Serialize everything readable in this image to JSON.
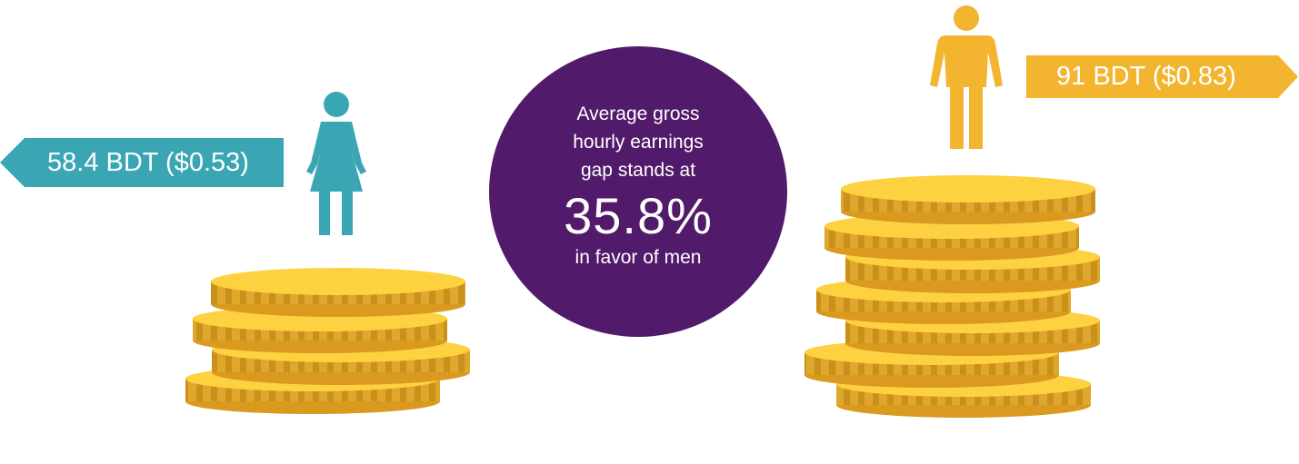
{
  "women": {
    "label": "58.4 BDT ($0.53)",
    "color": "#3aa6b4",
    "icon": "woman-icon"
  },
  "men": {
    "label": "91 BDT ($0.83)",
    "color": "#f3b530",
    "icon": "man-icon"
  },
  "gap": {
    "line1": "Average gross",
    "line2": "hourly earnings",
    "line3": "gap stands at",
    "value": "35.8%",
    "line4": "in favor of men",
    "color": "#521a6a"
  },
  "coins": {
    "left_count": 4,
    "right_count": 7,
    "icon": "coin-stack-icon"
  }
}
